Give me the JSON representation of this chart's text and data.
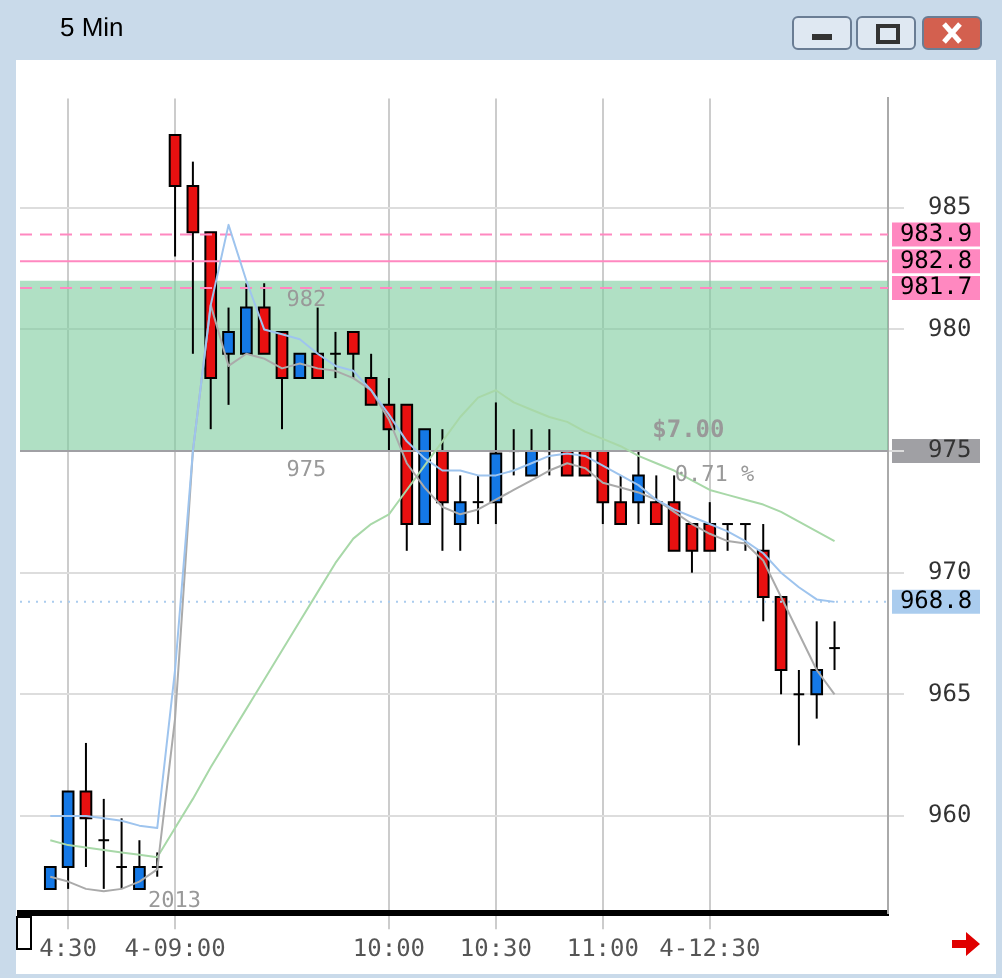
{
  "chart_data": {
    "type": "candlestick",
    "title": "5 Min",
    "categories": [
      null,
      "4:30",
      null,
      null,
      null,
      null,
      null,
      "4-09:00",
      null,
      null,
      null,
      null,
      null,
      null,
      null,
      null,
      null,
      null,
      null,
      "10:00",
      null,
      null,
      null,
      null,
      null,
      "10:30",
      null,
      null,
      null,
      null,
      null,
      "11:00",
      null,
      null,
      null,
      null,
      null,
      "4-12:30",
      null,
      null,
      null,
      null,
      null,
      null,
      null
    ],
    "ohlc": [
      [
        957.0,
        957.9,
        957.0,
        957.9
      ],
      [
        957.9,
        961.0,
        957.0,
        961.0
      ],
      [
        961.0,
        963.0,
        957.9,
        959.9
      ],
      [
        959.0,
        960.7,
        957.0,
        959.0
      ],
      [
        957.9,
        959.9,
        957.0,
        957.9
      ],
      [
        957.0,
        959.0,
        957.0,
        957.9
      ],
      [
        957.9,
        958.5,
        957.5,
        957.9
      ],
      [
        988.0,
        988.0,
        983.0,
        985.9
      ],
      [
        985.9,
        986.9,
        979.0,
        984.0
      ],
      [
        984.0,
        984.0,
        975.9,
        978.0
      ],
      [
        979.0,
        980.9,
        976.9,
        979.9
      ],
      [
        979.0,
        981.9,
        979.0,
        980.9
      ],
      [
        980.9,
        981.9,
        979.0,
        979.0
      ],
      [
        979.9,
        979.9,
        975.9,
        978.0
      ],
      [
        978.0,
        979.0,
        978.0,
        979.0
      ],
      [
        979.0,
        980.9,
        978.0,
        978.0
      ],
      [
        979.0,
        979.9,
        978.0,
        979.0
      ],
      [
        979.9,
        979.9,
        978.0,
        979.0
      ],
      [
        978.0,
        979.0,
        976.9,
        976.9
      ],
      [
        976.9,
        978.0,
        975.0,
        975.9
      ],
      [
        976.9,
        976.9,
        970.9,
        972.0
      ],
      [
        972.0,
        975.9,
        972.0,
        975.9
      ],
      [
        975.0,
        975.9,
        970.9,
        972.9
      ],
      [
        972.0,
        974.0,
        970.9,
        972.9
      ],
      [
        972.9,
        974.0,
        972.0,
        972.9
      ],
      [
        972.9,
        977.0,
        972.0,
        974.9
      ],
      [
        975.0,
        975.9,
        974.0,
        975.0
      ],
      [
        974.0,
        975.9,
        974.0,
        975.0
      ],
      [
        975.0,
        975.9,
        974.0,
        975.0
      ],
      [
        975.0,
        975.0,
        974.0,
        974.0
      ],
      [
        975.0,
        975.0,
        974.0,
        974.0
      ],
      [
        975.0,
        975.0,
        972.0,
        972.9
      ],
      [
        972.9,
        974.0,
        972.0,
        972.0
      ],
      [
        972.9,
        975.0,
        972.0,
        974.0
      ],
      [
        972.9,
        974.0,
        972.0,
        972.0
      ],
      [
        972.9,
        974.0,
        970.9,
        970.9
      ],
      [
        972.0,
        972.0,
        970.0,
        970.9
      ],
      [
        972.0,
        972.9,
        970.9,
        970.9
      ],
      [
        972.0,
        972.0,
        970.9,
        972.0
      ],
      [
        972.0,
        972.0,
        970.9,
        972.0
      ],
      [
        970.9,
        972.0,
        968.0,
        969.0
      ],
      [
        969.0,
        969.0,
        965.0,
        966.0
      ],
      [
        965.0,
        966.0,
        962.9,
        965.0
      ],
      [
        965.0,
        968.0,
        964.0,
        966.0
      ],
      [
        966.9,
        968.0,
        966.0,
        966.9
      ]
    ],
    "colors": [
      "#1478e6",
      "#1478e6",
      "#e81010",
      "#000000",
      "#000000",
      "#1478e6",
      "#000000",
      "#e81010",
      "#e81010",
      "#e81010",
      "#1478e6",
      "#1478e6",
      "#e81010",
      "#e81010",
      "#1478e6",
      "#e81010",
      "#000000",
      "#e81010",
      "#e81010",
      "#e81010",
      "#e81010",
      "#1478e6",
      "#e81010",
      "#1478e6",
      "#000000",
      "#1478e6",
      "#000000",
      "#1478e6",
      "#000000",
      "#e81010",
      "#e81010",
      "#e81010",
      "#e81010",
      "#1478e6",
      "#e81010",
      "#e81010",
      "#e81010",
      "#e81010",
      "#000000",
      "#000000",
      "#e81010",
      "#e81010",
      "#000000",
      "#1478e6",
      "#000000"
    ],
    "series": [
      {
        "type": "line",
        "color": "#9ec4ee",
        "values": [
          960.0,
          960.0,
          960.0,
          959.9,
          959.8,
          959.6,
          959.5,
          966.0,
          975.0,
          981.0,
          984.3,
          982.0,
          980.0,
          979.8,
          979.6,
          979.0,
          978.5,
          978.3,
          977.5,
          976.5,
          975.4,
          974.7,
          974.2,
          974.2,
          974.0,
          974.0,
          974.2,
          974.5,
          974.8,
          974.9,
          974.8,
          974.4,
          974.0,
          973.6,
          973.0,
          972.6,
          972.3,
          972.0,
          971.7,
          971.3,
          970.8,
          970.0,
          969.4,
          968.9,
          968.8
        ]
      },
      {
        "type": "line",
        "color": "#aaaaaa",
        "values": [
          957.5,
          957.3,
          957.0,
          956.9,
          957.0,
          957.3,
          957.8,
          964.0,
          975.0,
          981.0,
          978.5,
          979.0,
          978.8,
          978.4,
          978.6,
          978.4,
          978.3,
          978.0,
          977.5,
          976.3,
          974.5,
          973.5,
          972.7,
          972.4,
          972.6,
          973.0,
          973.4,
          973.8,
          974.2,
          974.5,
          974.3,
          973.7,
          973.5,
          973.3,
          973.0,
          972.5,
          972.0,
          971.6,
          971.3,
          971.2,
          970.5,
          969.0,
          967.5,
          966.0,
          965.0
        ]
      },
      {
        "type": "line",
        "color": "#a8d8a8",
        "values": [
          959.0,
          958.8,
          958.7,
          958.6,
          958.5,
          958.4,
          958.3,
          959.5,
          960.7,
          962.0,
          963.2,
          964.4,
          965.6,
          966.8,
          968.0,
          969.2,
          970.4,
          971.4,
          972.0,
          972.4,
          973.4,
          974.4,
          975.4,
          976.4,
          977.2,
          977.5,
          977.0,
          976.7,
          976.4,
          976.2,
          975.8,
          975.5,
          975.2,
          974.8,
          974.5,
          974.2,
          973.8,
          973.4,
          973.2,
          973.0,
          972.8,
          972.5,
          972.1,
          971.7,
          971.3
        ]
      }
    ],
    "ylim": [
      956,
      989.5
    ],
    "yticks": [
      960,
      965,
      970,
      975,
      980,
      985
    ],
    "grid": true,
    "legend": false,
    "ref_lines": [
      {
        "axis": "y",
        "value": 983.9,
        "label": "983.9",
        "color": "#ff88c0",
        "line_style": "dashed"
      },
      {
        "axis": "y",
        "value": 982.8,
        "label": "982.8",
        "color": "#ff88c0",
        "line_style": "solid"
      },
      {
        "axis": "y",
        "value": 981.7,
        "label": "981.7",
        "color": "#ff88c0",
        "line_style": "dashed"
      },
      {
        "axis": "y",
        "value": 975,
        "label": null,
        "color": "#a0a0a4",
        "line_style": "solid"
      },
      {
        "axis": "y",
        "value": 968.8,
        "label": "968.8",
        "color": "#aaccee",
        "line_style": "dotted"
      }
    ],
    "bands": [
      {
        "axis": "y",
        "from": 975,
        "to": 982,
        "color": "#7ccc9c"
      }
    ],
    "annotations": [
      {
        "text": "982",
        "y": 982
      },
      {
        "text": "975",
        "y": 975
      },
      {
        "text": "$7.00",
        "y": 975
      },
      {
        "text": "0.71 %",
        "y": 975
      },
      "2013"
    ]
  }
}
